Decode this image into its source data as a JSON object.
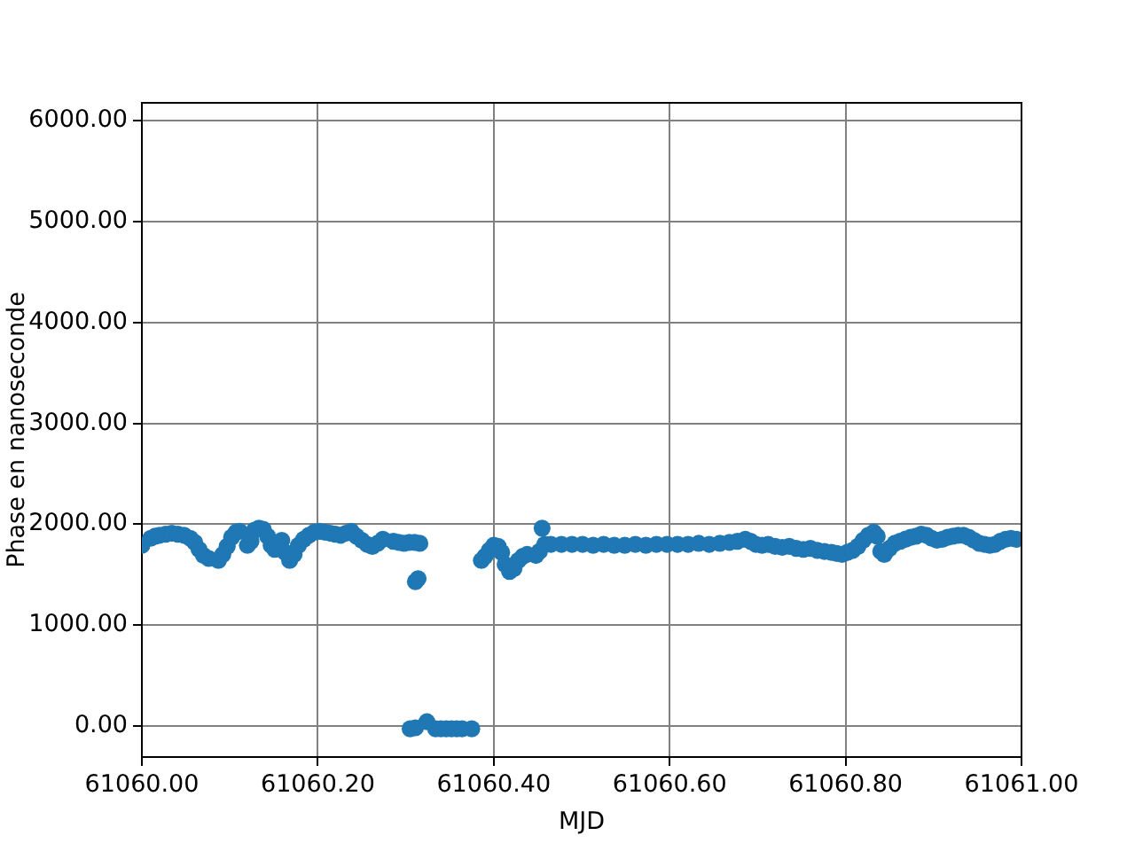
{
  "chart_data": {
    "type": "scatter",
    "xlabel": "MJD",
    "ylabel": "Phase en nanoseconde",
    "x": [
      61060.0,
      61060.01,
      61060.015,
      61060.02,
      61060.027,
      61060.034,
      61060.041,
      61060.048,
      61060.055,
      61060.06,
      61060.065,
      61060.07,
      61060.076,
      61060.087,
      61060.092,
      61060.097,
      61060.102,
      61060.107,
      61060.111,
      61060.12,
      61060.124,
      61060.128,
      61060.133,
      61060.138,
      61060.143,
      61060.147,
      61060.151,
      61060.159,
      61060.163,
      61060.168,
      61060.173,
      61060.178,
      61060.184,
      61060.19,
      61060.196,
      61060.202,
      61060.208,
      61060.214,
      61060.22,
      61060.226,
      61060.232,
      61060.238,
      61060.244,
      61060.25,
      61060.256,
      61060.262,
      61060.268,
      61060.274,
      61060.286,
      61060.292,
      61060.298,
      61060.304,
      61060.31,
      61060.316,
      61060.311,
      61060.314,
      61060.305,
      61060.311,
      61060.324,
      61060.334,
      61060.34,
      61060.346,
      61060.352,
      61060.358,
      61060.364,
      61060.375,
      61060.386,
      61060.39,
      61060.395,
      61060.4,
      61060.405,
      61060.409,
      61060.413,
      61060.418,
      61060.423,
      61060.428,
      61060.433,
      61060.438,
      61060.448,
      61060.452,
      61060.455,
      61060.458,
      61060.465,
      61060.477,
      61060.489,
      61060.501,
      61060.513,
      61060.525,
      61060.537,
      61060.549,
      61060.561,
      61060.573,
      61060.585,
      61060.597,
      61060.609,
      61060.621,
      61060.633,
      61060.645,
      61060.657,
      61060.668,
      61060.677,
      61060.686,
      61060.692,
      61060.698,
      61060.705,
      61060.712,
      61060.72,
      61060.728,
      61060.736,
      61060.744,
      61060.752,
      61060.76,
      61060.768,
      61060.776,
      61060.784,
      61060.79,
      61060.796,
      61060.802,
      61060.808,
      61060.814,
      61060.82,
      61060.826,
      61060.832,
      61060.836,
      61060.84,
      61060.844,
      61060.85,
      61060.856,
      61060.862,
      61060.868,
      61060.874,
      61060.88,
      61060.886,
      61060.892,
      61060.898,
      61060.904,
      61060.91,
      61060.916,
      61060.922,
      61060.928,
      61060.934,
      61060.94,
      61060.946,
      61060.952,
      61060.958,
      61060.964,
      61060.97,
      61060.976,
      61060.982,
      61060.988,
      61060.994
    ],
    "series": [
      {
        "color": "#1f77b4",
        "values": [
          1790,
          1860,
          1880,
          1890,
          1900,
          1910,
          1900,
          1890,
          1860,
          1820,
          1750,
          1690,
          1660,
          1640,
          1700,
          1780,
          1870,
          1920,
          1930,
          1790,
          1830,
          1940,
          1960,
          1950,
          1880,
          1790,
          1750,
          1840,
          1720,
          1640,
          1700,
          1790,
          1850,
          1890,
          1920,
          1930,
          1920,
          1910,
          1900,
          1890,
          1910,
          1930,
          1880,
          1840,
          1800,
          1780,
          1810,
          1850,
          1830,
          1820,
          1810,
          1820,
          1820,
          1810,
          1430,
          1460,
          -30,
          -20,
          40,
          -30,
          -30,
          -30,
          -30,
          -30,
          -30,
          -30,
          1640,
          1680,
          1740,
          1790,
          1780,
          1720,
          1600,
          1530,
          1560,
          1640,
          1680,
          1700,
          1690,
          1730,
          1960,
          1800,
          1800,
          1800,
          1800,
          1800,
          1790,
          1800,
          1790,
          1790,
          1800,
          1790,
          1800,
          1800,
          1800,
          1800,
          1810,
          1800,
          1810,
          1820,
          1830,
          1850,
          1830,
          1800,
          1790,
          1800,
          1780,
          1770,
          1780,
          1760,
          1750,
          1760,
          1740,
          1730,
          1720,
          1710,
          1700,
          1720,
          1740,
          1780,
          1840,
          1890,
          1920,
          1880,
          1730,
          1700,
          1760,
          1810,
          1830,
          1850,
          1870,
          1880,
          1900,
          1890,
          1860,
          1840,
          1850,
          1870,
          1880,
          1890,
          1890,
          1870,
          1840,
          1810,
          1800,
          1790,
          1800,
          1830,
          1850,
          1860,
          1850
        ]
      }
    ],
    "xlim": [
      61060,
      61061
    ],
    "xticks": [
      {
        "value": 61060,
        "label": "61060.00"
      },
      {
        "value": 61060.2,
        "label": "61060.20"
      },
      {
        "value": 61060.4,
        "label": "61060.40"
      },
      {
        "value": 61060.6,
        "label": "61060.60"
      },
      {
        "value": 61060.8,
        "label": "61060.80"
      },
      {
        "value": 61061,
        "label": "61061.00"
      }
    ],
    "ylim": [
      -310,
      6180
    ],
    "yticks": [
      {
        "value": 0,
        "label": "0.00"
      },
      {
        "value": 1000,
        "label": "1000.00"
      },
      {
        "value": 2000,
        "label": "2000.00"
      },
      {
        "value": 3000,
        "label": "3000.00"
      },
      {
        "value": 4000,
        "label": "4000.00"
      },
      {
        "value": 5000,
        "label": "5000.00"
      },
      {
        "value": 6000,
        "label": "6000.00"
      }
    ],
    "grid": true,
    "marker": "circle"
  }
}
